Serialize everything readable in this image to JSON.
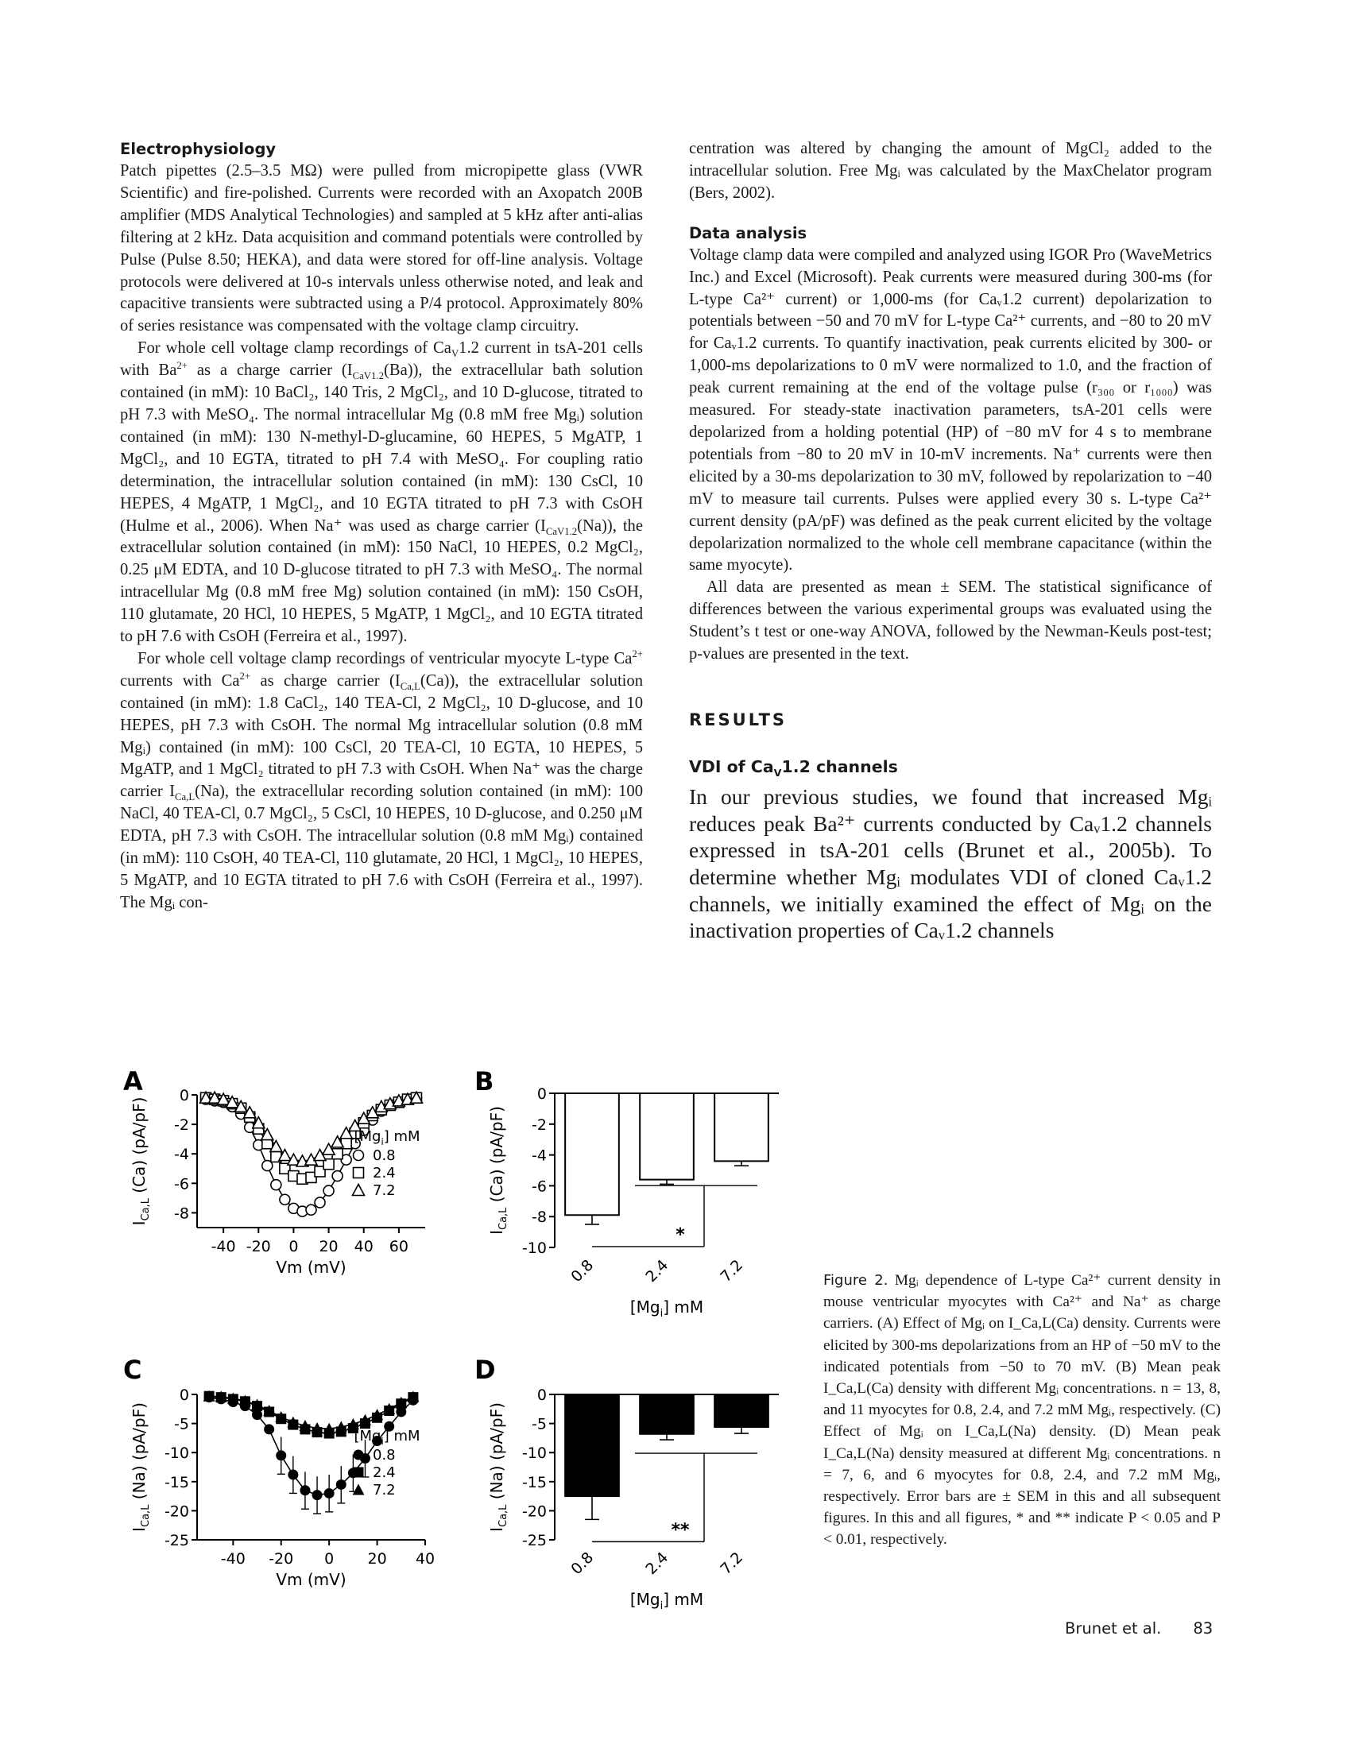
{
  "left_column": {
    "heading": "Electrophysiology",
    "p1": "Patch pipettes (2.5–3.5 MΩ) were pulled from micropipette glass (VWR Scientific) and fire-polished. Currents were recorded with an Axopatch 200B amplifier (MDS Analytical Technologies) and sampled at 5 kHz after anti-alias filtering at 2 kHz. Data acquisition and command potentials were controlled by Pulse (Pulse 8.50; HEKA), and data were stored for off-line analysis. Voltage protocols were delivered at 10-s intervals unless otherwise noted, and leak and capacitive transients were subtracted using a P/4 protocol. Approximately 80% of series resistance was compensated with the voltage clamp circuitry.",
    "p2_a": "For whole cell voltage clamp recordings of Ca",
    "p2_b": "V",
    "p2_c": "1.2 current in tsA-201 cells with Ba",
    "p2_d": "2+",
    "p2_e": " as a charge carrier (I",
    "p2_f": "CaV1.2",
    "p2_g": "(Ba)), the extracellular bath solution contained (in mM): 10 BaCl₂, 140 Tris, 2 MgCl₂, and 10 D-glucose, titrated to pH 7.3 with MeSO₄. The normal intracellular Mg (0.8 mM free Mgᵢ) solution contained (in mM): 130 N-methyl-D-glucamine, 60 HEPES, 5 MgATP, 1 MgCl₂, and 10 EGTA, titrated to pH 7.4 with MeSO₄. For coupling ratio determination, the intracellular solution contained (in mM): 130 CsCl, 10 HEPES, 4 MgATP, 1 MgCl₂, and 10 EGTA titrated to pH 7.3 with CsOH (Hulme et al., 2006). When Na⁺ was used as charge carrier (I",
    "p2_h": "CaV1.2",
    "p2_i": "(Na)), the extracellular solution contained (in mM): 150 NaCl, 10 HEPES, 0.2 MgCl₂, 0.25 μM EDTA, and 10 D-glucose titrated to pH 7.3 with MeSO₄. The normal intracellular Mg (0.8 mM free Mg) solution contained (in mM): 150 CsOH, 110 glutamate, 20 HCl, 10 HEPES, 5 MgATP, 1 MgCl₂, and 10 EGTA titrated to pH 7.6 with CsOH (Ferreira et al., 1997).",
    "p3_a": "For whole cell voltage clamp recordings of ventricular myocyte L-type Ca",
    "p3_b": "2+",
    "p3_c": " currents with Ca",
    "p3_d": "2+",
    "p3_e": " as charge carrier (I",
    "p3_f": "Ca,L",
    "p3_g": "(Ca)), the extracellular solution contained (in mM): 1.8 CaCl₂, 140 TEA-Cl, 2 MgCl₂, 10 D-glucose, and 10 HEPES, pH 7.3 with CsOH. The normal Mg intracellular solution (0.8 mM Mgᵢ) contained (in mM): 100 CsCl, 20 TEA-Cl, 10 EGTA, 10 HEPES, 5 MgATP, and 1 MgCl₂ titrated to pH 7.3 with CsOH. When Na⁺ was the charge carrier I",
    "p3_h": "Ca,L",
    "p3_i": "(Na), the extracellular recording solution contained (in mM): 100 NaCl, 40 TEA-Cl, 0.7 MgCl₂, 5 CsCl, 10 HEPES, 10 D-glucose, and 0.250 μM EDTA, pH 7.3 with CsOH. The intracellular solution (0.8 mM Mgᵢ) contained (in mM): 110 CsOH, 40 TEA-Cl, 110 glutamate, 20 HCl, 1 MgCl₂, 10 HEPES, 5 MgATP, and 10 EGTA titrated to pH 7.6 with CsOH (Ferreira et al., 1997). The Mgᵢ con-"
  },
  "right_column": {
    "p0": "centration was altered by changing the amount of MgCl₂ added to the intracellular solution. Free Mgᵢ was calculated by the MaxChelator program (Bers, 2002).",
    "heading": "Data analysis",
    "p1": "Voltage clamp data were compiled and analyzed using IGOR Pro (WaveMetrics Inc.) and Excel (Microsoft). Peak currents were measured during 300-ms (for L-type Ca²⁺ current) or 1,000-ms (for Caᵥ1.2 current) depolarization to potentials between −50 and 70 mV for L-type Ca²⁺ currents, and −80 to 20 mV for Caᵥ1.2 currents. To quantify inactivation, peak currents elicited by 300- or 1,000-ms depolarizations to 0 mV were normalized to 1.0, and the fraction of peak current remaining at the end of the voltage pulse (r₃₀₀ or r₁₀₀₀) was measured. For steady-state inactivation parameters, tsA-201 cells were depolarized from a holding potential (HP) of −80 mV for 4 s to membrane potentials from −80 to 20 mV in 10-mV increments. Na⁺ currents were then elicited by a 30-ms depolarization to 30 mV, followed by repolarization to −40 mV to measure tail currents. Pulses were applied every 30 s. L-type Ca²⁺ current density (pA/pF) was defined as the peak current elicited by the voltage depolarization normalized to the whole cell membrane capacitance (within the same myocyte).",
    "p2": "All data are presented as mean ± SEM. The statistical significance of differences between the various experimental groups was evaluated using the Student’s t test or one-way ANOVA, followed by the Newman-Keuls post-test; p-values are presented in the text.",
    "results": "RESULTS",
    "vdi_a": "VDI of Ca",
    "vdi_b": "V",
    "vdi_c": "1.2 channels",
    "p3": "In our previous studies, we found that increased Mgᵢ reduces peak Ba²⁺ currents conducted by Caᵥ1.2 channels expressed in tsA-201 cells (Brunet et al., 2005b). To determine whether Mgᵢ modulates VDI of cloned Caᵥ1.2 channels, we initially examined the effect of Mgᵢ on the inactivation properties of Caᵥ1.2 channels"
  },
  "caption": {
    "label": "Figure 2.",
    "text": " Mgᵢ dependence of L-type Ca²⁺ current density in mouse ventricular myocytes with Ca²⁺ and Na⁺ as charge carriers. (A) Effect of Mgᵢ on I_Ca,L(Ca) density. Currents were elicited by 300-ms depolarizations from an HP of −50 mV to the indicated potentials from −50 to 70 mV. (B) Mean peak I_Ca,L(Ca) density with different Mgᵢ concentrations. n = 13, 8, and 11 myocytes for 0.8, 2.4, and 7.2 mM Mgᵢ, respectively. (C) Effect of Mgᵢ on I_Ca,L(Na) density. (D) Mean peak I_Ca,L(Na) density measured at different Mgᵢ concentrations. n = 7, 6, and 6 myocytes for 0.8, 2.4, and 7.2 mM Mgᵢ, respectively. Error bars are ± SEM in this and all subsequent figures. In this and all figures, * and ** indicate P < 0.05 and P < 0.01, respectively."
  },
  "footer": {
    "authors": "Brunet et al.",
    "page": "83"
  },
  "chart_data": [
    {
      "panel": "A",
      "type": "scatter",
      "xlabel": "Vm (mV)",
      "ylabel": "I_Ca,L (Ca) (pA/pF)",
      "xlim": [
        -55,
        75
      ],
      "ylim": [
        -9,
        0
      ],
      "xticks": [
        "-40",
        "-20",
        "0",
        "20",
        "40",
        "60"
      ],
      "yticks": [
        "0",
        "-2",
        "-4",
        "-6",
        "-8"
      ],
      "legend_title": "[Mgi] mM",
      "x": [
        -50,
        -45,
        -40,
        -35,
        -30,
        -25,
        -20,
        -15,
        -10,
        -5,
        0,
        5,
        10,
        15,
        20,
        25,
        30,
        35,
        40,
        45,
        50,
        55,
        60,
        65,
        70
      ],
      "series": [
        {
          "name": "0.8",
          "marker": "circle",
          "values": [
            -0.3,
            -0.4,
            -0.5,
            -0.8,
            -1.3,
            -2.2,
            -3.4,
            -4.8,
            -6.1,
            -7.1,
            -7.7,
            -7.9,
            -7.8,
            -7.3,
            -6.5,
            -5.5,
            -4.4,
            -3.3,
            -2.4,
            -1.7,
            -1.1,
            -0.7,
            -0.5,
            -0.3,
            -0.2
          ]
        },
        {
          "name": "2.4",
          "marker": "square",
          "values": [
            -0.2,
            -0.3,
            -0.4,
            -0.6,
            -0.9,
            -1.5,
            -2.3,
            -3.3,
            -4.2,
            -5.0,
            -5.5,
            -5.7,
            -5.6,
            -5.2,
            -4.7,
            -4.0,
            -3.3,
            -2.6,
            -1.9,
            -1.4,
            -1.0,
            -0.7,
            -0.5,
            -0.3,
            -0.2
          ]
        },
        {
          "name": "7.2",
          "marker": "triangle",
          "values": [
            -0.2,
            -0.2,
            -0.3,
            -0.5,
            -0.8,
            -1.2,
            -1.9,
            -2.7,
            -3.5,
            -4.1,
            -4.4,
            -4.5,
            -4.4,
            -4.1,
            -3.7,
            -3.2,
            -2.6,
            -2.1,
            -1.6,
            -1.2,
            -0.8,
            -0.6,
            -0.4,
            -0.3,
            -0.2
          ]
        }
      ]
    },
    {
      "panel": "B",
      "type": "bar",
      "categories": [
        "0.8",
        "2.4",
        "7.2"
      ],
      "values": [
        -7.9,
        -5.6,
        -4.4
      ],
      "errors": [
        0.6,
        0.3,
        0.3
      ],
      "xlabel": "[Mgi] mM",
      "ylabel": "I_Ca,L (Ca) (pA/pF)",
      "ylim": [
        -10,
        0
      ],
      "yticks": [
        "0",
        "-2",
        "-4",
        "-6",
        "-8",
        "-10"
      ],
      "fill": "white",
      "significance": "*"
    },
    {
      "panel": "C",
      "type": "scatter",
      "xlabel": "Vm (mV)",
      "ylabel": "I_Ca,L (Na) (pA/pF)",
      "xlim": [
        -55,
        40
      ],
      "ylim": [
        -25,
        0
      ],
      "xticks": [
        "-40",
        "-20",
        "0",
        "20",
        "40"
      ],
      "yticks": [
        "0",
        "-5",
        "-10",
        "-15",
        "-20",
        "-25"
      ],
      "legend_title": "[Mgi] mM",
      "x": [
        -50,
        -45,
        -40,
        -35,
        -30,
        -25,
        -20,
        -15,
        -10,
        -5,
        0,
        5,
        10,
        15,
        20,
        25,
        30,
        35
      ],
      "series": [
        {
          "name": "0.8",
          "marker": "filled-circle",
          "values": [
            -0.5,
            -0.8,
            -1.3,
            -2.0,
            -3.5,
            -6.0,
            -10.5,
            -13.8,
            -16.5,
            -17.3,
            -17.0,
            -15.5,
            -13.5,
            -11.0,
            -8.0,
            -5.5,
            -3.0,
            -1.0
          ]
        },
        {
          "name": "2.4",
          "marker": "filled-square",
          "values": [
            -0.3,
            -0.5,
            -0.8,
            -1.2,
            -2.0,
            -3.0,
            -4.2,
            -5.2,
            -6.0,
            -6.5,
            -6.7,
            -6.4,
            -5.8,
            -5.0,
            -4.0,
            -2.8,
            -1.6,
            -0.5
          ]
        },
        {
          "name": "7.2",
          "marker": "filled-triangle",
          "values": [
            -0.3,
            -0.4,
            -0.7,
            -1.1,
            -1.8,
            -2.8,
            -3.9,
            -4.8,
            -5.4,
            -5.8,
            -5.9,
            -5.6,
            -5.1,
            -4.4,
            -3.5,
            -2.5,
            -1.4,
            -0.4
          ]
        }
      ]
    },
    {
      "panel": "D",
      "type": "bar",
      "categories": [
        "0.8",
        "2.4",
        "7.2"
      ],
      "values": [
        -17.5,
        -6.8,
        -5.6
      ],
      "errors": [
        4.0,
        1.0,
        1.1
      ],
      "xlabel": "[Mgi] mM",
      "ylabel": "I_Ca,L (Na) (pA/pF)",
      "ylim": [
        -25,
        0
      ],
      "yticks": [
        "0",
        "-5",
        "-10",
        "-15",
        "-20",
        "-25"
      ],
      "fill": "black",
      "significance": "**"
    }
  ]
}
